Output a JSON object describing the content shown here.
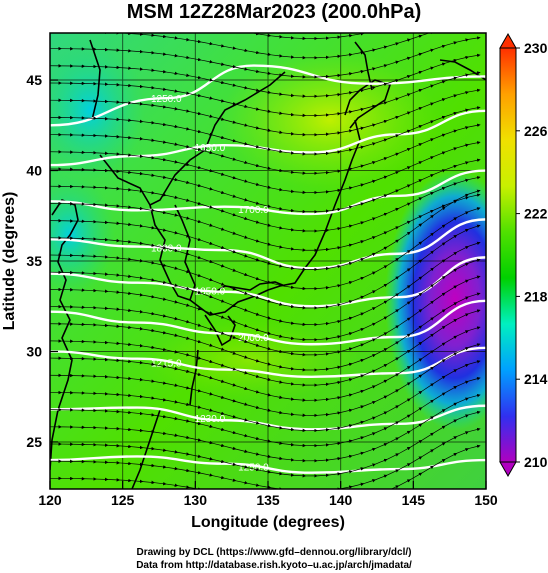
{
  "title": "MSM 12Z28Mar2023 (200.0hPa)",
  "x_axis": {
    "label": "Longitude (degrees)",
    "ticks": [
      "120",
      "125",
      "130",
      "135",
      "140",
      "145",
      "150"
    ],
    "range": [
      120,
      150
    ]
  },
  "y_axis": {
    "label": "Latitude  (degrees)",
    "ticks": [
      "25",
      "30",
      "35",
      "40",
      "45"
    ],
    "range": [
      22.4,
      47.6
    ]
  },
  "colorbar": {
    "ticks": [
      "230",
      "226",
      "222",
      "218",
      "214",
      "210"
    ],
    "range": [
      210,
      230
    ],
    "colors": [
      "#b000c0",
      "#3030f0",
      "#00a0ff",
      "#00f0c0",
      "#00d000",
      "#50e000",
      "#c8f000",
      "#f0e000",
      "#ffa000",
      "#ff3000"
    ]
  },
  "contours": [
    {
      "label": "1250.0",
      "lat_at_lon": [
        [
          120,
          42.5
        ],
        [
          128,
          44.0
        ],
        [
          134,
          45.8
        ],
        [
          142,
          44.8
        ],
        [
          150,
          45.2
        ]
      ]
    },
    {
      "label": "1650.0",
      "lat_at_lon": [
        [
          120,
          40.3
        ],
        [
          126,
          40.8
        ],
        [
          132,
          41.4
        ],
        [
          138,
          41.0
        ],
        [
          144,
          42.0
        ],
        [
          150,
          43.3
        ]
      ]
    },
    {
      "label": "1700.0",
      "lat_at_lon": [
        [
          120,
          38.3
        ],
        [
          126,
          37.8
        ],
        [
          132,
          38.0
        ],
        [
          138,
          37.6
        ],
        [
          144,
          38.6
        ],
        [
          150,
          40.0
        ]
      ]
    },
    {
      "label": "1800.0",
      "lat_at_lon": [
        [
          120,
          36.2
        ],
        [
          126,
          35.8
        ],
        [
          132,
          35.6
        ],
        [
          138,
          34.6
        ],
        [
          144,
          35.4
        ],
        [
          150,
          37.3
        ]
      ]
    },
    {
      "label": "1850.0",
      "lat_at_lon": [
        [
          120,
          34.3
        ],
        [
          126,
          33.8
        ],
        [
          132,
          33.3
        ],
        [
          138,
          32.5
        ],
        [
          144,
          33.0
        ],
        [
          150,
          35.2
        ]
      ]
    },
    {
      "label": "2000.0",
      "lat_at_lon": [
        [
          120,
          32.2
        ],
        [
          126,
          31.6
        ],
        [
          132,
          31.0
        ],
        [
          138,
          30.4
        ],
        [
          144,
          30.8
        ],
        [
          150,
          32.8
        ]
      ]
    },
    {
      "label": "1215.0",
      "lat_at_lon": [
        [
          120,
          30.0
        ],
        [
          126,
          29.6
        ],
        [
          132,
          29.0
        ],
        [
          138,
          28.6
        ],
        [
          144,
          28.8
        ],
        [
          150,
          30.2
        ]
      ]
    },
    {
      "label": "1230.0",
      "lat_at_lon": [
        [
          120,
          26.8
        ],
        [
          126,
          26.9
        ],
        [
          132,
          26.2
        ],
        [
          138,
          25.7
        ],
        [
          144,
          26.0
        ],
        [
          150,
          27.0
        ]
      ]
    },
    {
      "label": "1250.0",
      "lat_at_lon": [
        [
          120,
          24.0
        ],
        [
          126,
          24.2
        ],
        [
          132,
          23.8
        ],
        [
          138,
          23.3
        ],
        [
          144,
          23.5
        ],
        [
          150,
          24.0
        ]
      ]
    }
  ],
  "credits": {
    "line1": "Drawing by DCL (https://www.gfd–dennou.org/library/dcl/)",
    "line2": "Data from http://database.rish.kyoto–u.ac.jp/arch/jmadata/"
  }
}
